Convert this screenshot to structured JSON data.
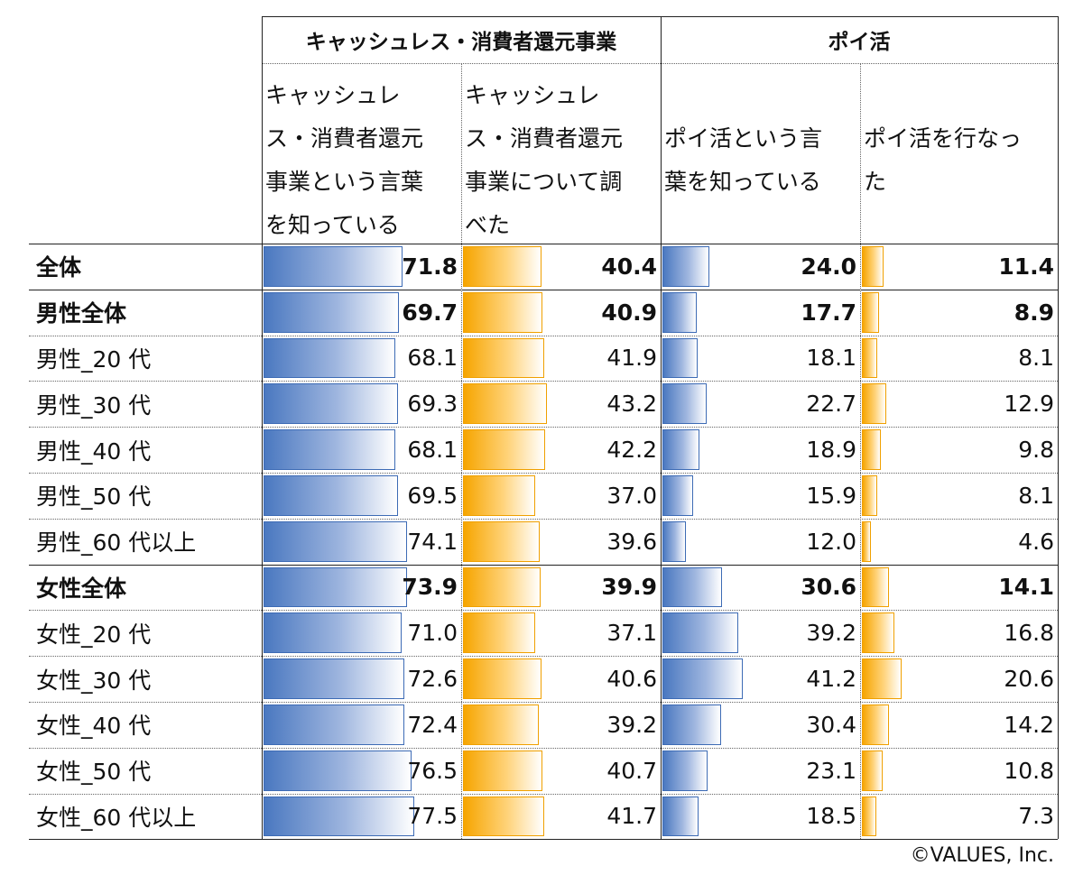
{
  "chart_data": {
    "type": "table",
    "title": "",
    "groups": [
      {
        "label": "キャッシュレス・消費者還元事業",
        "columns": [
          0,
          1
        ]
      },
      {
        "label": "ポイ活",
        "columns": [
          2,
          3
        ]
      }
    ],
    "columns": [
      {
        "header": "キャッシュレス・消費者還元事業という言葉を知っている",
        "header_lines": "キャッシュレ\nス・消費者還元\n事業という言葉\nを知っている",
        "bar_color": "#4a78c0"
      },
      {
        "header": "キャッシュレス・消費者還元事業について調べた",
        "header_lines": "キャッシュレ\nス・消費者還元\n事業について調\nべた",
        "bar_color": "#f6a500"
      },
      {
        "header": "ポイ活という言葉を知っている",
        "header_lines": "\nポイ活という言\n葉を知っている",
        "bar_color": "#4a78c0"
      },
      {
        "header": "ポイ活を行なった",
        "header_lines": "\nポイ活を行なっ\nた",
        "bar_color": "#f6a500"
      }
    ],
    "rows": [
      {
        "label": "全体",
        "bold": true,
        "values": [
          71.8,
          40.4,
          24.0,
          11.4
        ]
      },
      {
        "label": "男性全体",
        "bold": true,
        "values": [
          69.7,
          40.9,
          17.7,
          8.9
        ]
      },
      {
        "label": "男性_20 代",
        "bold": false,
        "values": [
          68.1,
          41.9,
          18.1,
          8.1
        ]
      },
      {
        "label": "男性_30 代",
        "bold": false,
        "values": [
          69.3,
          43.2,
          22.7,
          12.9
        ]
      },
      {
        "label": "男性_40 代",
        "bold": false,
        "values": [
          68.1,
          42.2,
          18.9,
          9.8
        ]
      },
      {
        "label": "男性_50 代",
        "bold": false,
        "values": [
          69.5,
          37.0,
          15.9,
          8.1
        ]
      },
      {
        "label": "男性_60 代以上",
        "bold": false,
        "values": [
          74.1,
          39.6,
          12.0,
          4.6
        ]
      },
      {
        "label": "女性全体",
        "bold": true,
        "values": [
          73.9,
          39.9,
          30.6,
          14.1
        ]
      },
      {
        "label": "女性_20 代",
        "bold": false,
        "values": [
          71.0,
          37.1,
          39.2,
          16.8
        ]
      },
      {
        "label": "女性_30 代",
        "bold": false,
        "values": [
          72.6,
          40.6,
          41.2,
          20.6
        ]
      },
      {
        "label": "女性_40 代",
        "bold": false,
        "values": [
          72.4,
          39.2,
          30.4,
          14.2
        ]
      },
      {
        "label": "女性_50 代",
        "bold": false,
        "values": [
          76.5,
          40.7,
          23.1,
          10.8
        ]
      },
      {
        "label": "女性_60 代以上",
        "bold": false,
        "values": [
          77.5,
          41.7,
          18.5,
          7.3
        ]
      }
    ],
    "bar_scale_max": 100
  },
  "copyright": "©VALUES, Inc."
}
